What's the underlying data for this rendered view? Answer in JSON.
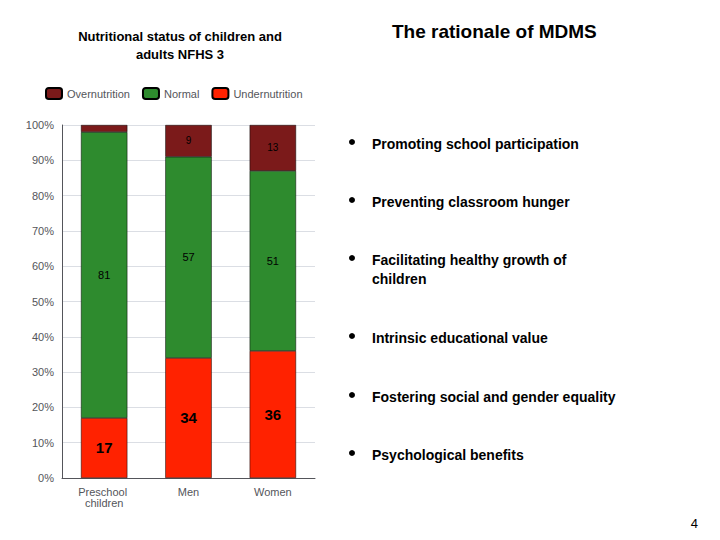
{
  "chart_data": {
    "type": "bar",
    "title": "Nutritional status of children and\nadults NFHS 3",
    "categories": [
      "Preschool children",
      "Men",
      "Women"
    ],
    "stacked": true,
    "data_labels": true,
    "grid": true,
    "legend": "top",
    "series": [
      {
        "name": "Undernutrition",
        "color": "#FF2200",
        "values": [
          17,
          34,
          36
        ]
      },
      {
        "name": "Normal",
        "color": "#2E8B2E",
        "values": [
          81,
          57,
          51
        ]
      },
      {
        "name": "Overnutrition",
        "color": "#7B1A1A",
        "values": [
          2,
          9,
          13
        ],
        "value_labels": [
          null,
          "9",
          "13"
        ]
      }
    ],
    "ylim": [
      0,
      100
    ],
    "yticks": [
      {
        "value": 0,
        "label": "0%"
      },
      {
        "value": 10,
        "label": "10%"
      },
      {
        "value": 20,
        "label": "20%"
      },
      {
        "value": 30,
        "label": "30%"
      },
      {
        "value": 40,
        "label": "40%"
      },
      {
        "value": 50,
        "label": "50%"
      },
      {
        "value": 60,
        "label": "60%"
      },
      {
        "value": 70,
        "label": "70%"
      },
      {
        "value": 80,
        "label": "80%"
      },
      {
        "value": 90,
        "label": "90%"
      },
      {
        "value": 100,
        "label": "100%"
      }
    ],
    "annotations": [
      "The rationale of MDMS",
      "Promoting school participation",
      "Preventing classroom hunger",
      "Facilitating healthy growth of\nchildren",
      "Intrinsic educational value",
      "Fostering social and gender equality",
      "Psychological benefits",
      "4"
    ]
  }
}
